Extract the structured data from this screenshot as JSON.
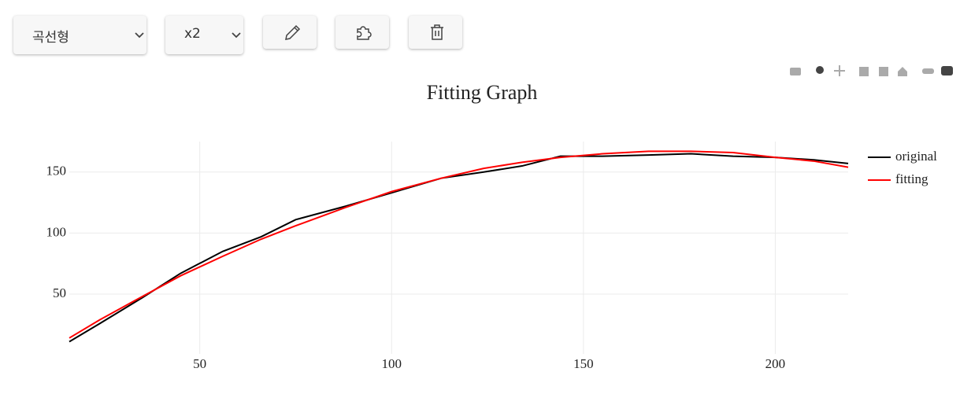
{
  "toolbar": {
    "mode": "곡선형",
    "degree": "x2"
  },
  "chart_data": {
    "type": "line",
    "title": "Fitting Graph",
    "x": [
      16,
      24,
      35,
      45,
      56,
      66,
      75,
      88,
      100,
      113,
      124,
      134,
      144,
      155,
      167,
      178,
      189,
      200,
      210,
      219
    ],
    "series": [
      {
        "name": "original",
        "color": "#000000",
        "values": [
          11,
          26,
          47,
          67,
          85,
          97,
          111,
          122,
          133,
          145,
          150,
          155,
          163,
          163,
          164,
          165,
          163,
          162,
          160,
          157
        ]
      },
      {
        "name": "fitting",
        "color": "#ff0000",
        "values": [
          14,
          29,
          48,
          65,
          81,
          95,
          106,
          121,
          134,
          145,
          153,
          158,
          162,
          165,
          167,
          167,
          166,
          162,
          159,
          154
        ]
      }
    ],
    "xlim": [
      16,
      219
    ],
    "ylim": [
      1,
      175
    ],
    "xticks": [
      50,
      100,
      150,
      200
    ],
    "yticks": [
      50,
      100,
      150
    ],
    "grid": true
  }
}
